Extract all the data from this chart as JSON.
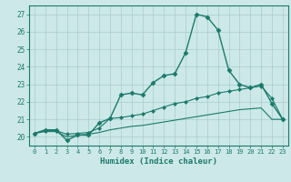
{
  "xlabel": "Humidex (Indice chaleur)",
  "background_color": "#cce8e8",
  "line_color": "#1a7a6a",
  "grid_color": "#aacccc",
  "xlim": [
    -0.5,
    23.5
  ],
  "ylim": [
    19.5,
    27.5
  ],
  "yticks": [
    20,
    21,
    22,
    23,
    24,
    25,
    26,
    27
  ],
  "xticks": [
    0,
    1,
    2,
    3,
    4,
    5,
    6,
    7,
    8,
    9,
    10,
    11,
    12,
    13,
    14,
    15,
    16,
    17,
    18,
    19,
    20,
    21,
    22,
    23
  ],
  "series": [
    {
      "x": [
        0,
        1,
        2,
        3,
        4,
        5,
        6,
        7,
        8,
        9,
        10,
        11,
        12,
        13,
        14,
        15,
        16,
        17,
        18,
        19,
        20,
        21,
        22,
        23
      ],
      "y": [
        20.2,
        20.4,
        20.4,
        19.8,
        20.1,
        20.1,
        20.8,
        21.05,
        22.4,
        22.5,
        22.4,
        23.1,
        23.5,
        23.6,
        24.8,
        27.0,
        26.85,
        26.1,
        23.8,
        23.0,
        22.8,
        23.0,
        21.9,
        21.0
      ],
      "marker": "D",
      "markersize": 2.5,
      "linewidth": 1.0
    },
    {
      "x": [
        0,
        1,
        2,
        3,
        4,
        5,
        6,
        7,
        8,
        9,
        10,
        11,
        12,
        13,
        14,
        15,
        16,
        17,
        18,
        19,
        20,
        21,
        22,
        23
      ],
      "y": [
        20.2,
        20.35,
        20.35,
        20.15,
        20.2,
        20.25,
        20.5,
        21.05,
        21.1,
        21.2,
        21.3,
        21.5,
        21.7,
        21.9,
        22.0,
        22.2,
        22.3,
        22.5,
        22.6,
        22.7,
        22.8,
        22.9,
        22.2,
        21.0
      ],
      "marker": "D",
      "markersize": 2,
      "linewidth": 0.8
    },
    {
      "x": [
        0,
        1,
        2,
        3,
        4,
        5,
        6,
        7,
        8,
        9,
        10,
        11,
        12,
        13,
        14,
        15,
        16,
        17,
        18,
        19,
        20,
        21,
        22,
        23
      ],
      "y": [
        20.2,
        20.3,
        20.3,
        20.0,
        20.1,
        20.15,
        20.25,
        20.4,
        20.5,
        20.6,
        20.65,
        20.75,
        20.85,
        20.95,
        21.05,
        21.15,
        21.25,
        21.35,
        21.45,
        21.55,
        21.6,
        21.65,
        21.0,
        21.0
      ],
      "marker": null,
      "markersize": 0,
      "linewidth": 0.8
    }
  ]
}
